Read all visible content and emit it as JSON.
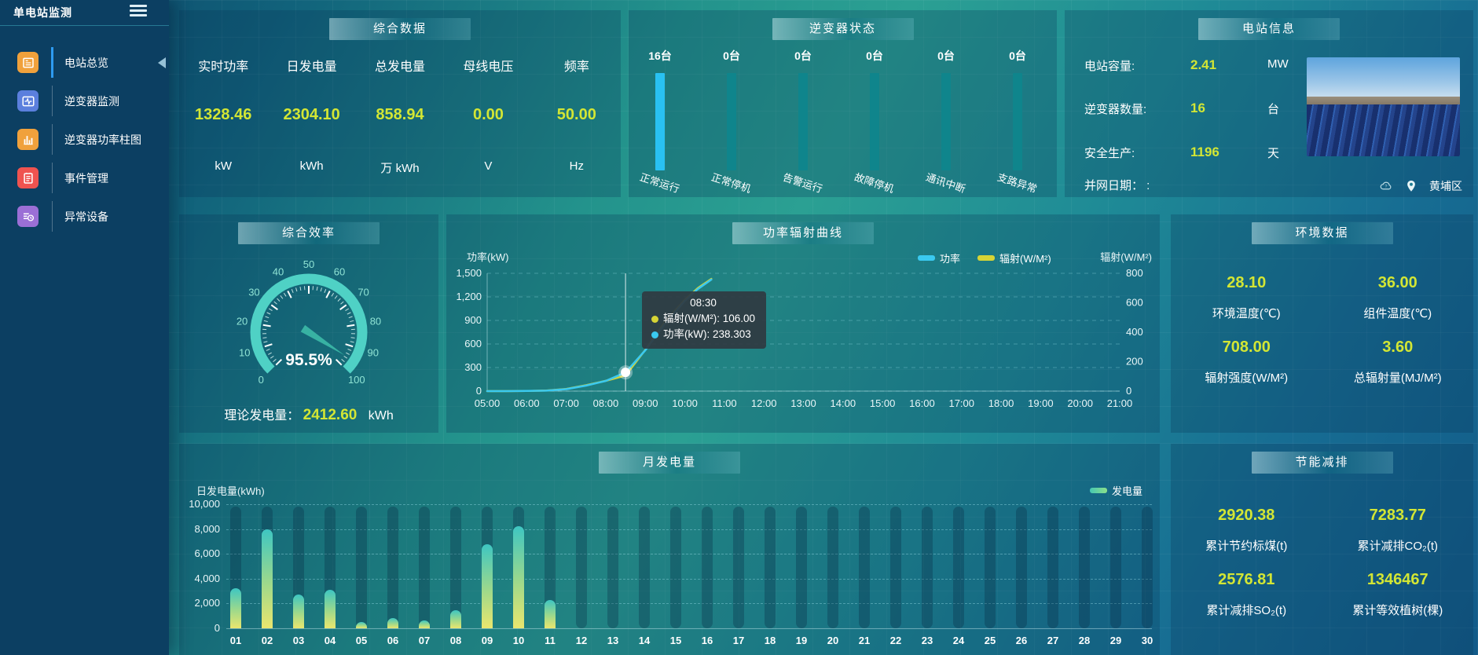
{
  "sidebar": {
    "title": "单电站监测",
    "items": [
      {
        "label": "电站总览",
        "icon": "doc-icon",
        "color": "#f0a13c",
        "active": true
      },
      {
        "label": "逆变器监测",
        "icon": "pulse-icon",
        "color": "#5b7fdd",
        "active": false
      },
      {
        "label": "逆变器功率柱图",
        "icon": "bars-icon",
        "color": "#f0a13c",
        "active": false
      },
      {
        "label": "事件管理",
        "icon": "notebook-icon",
        "color": "#ef5350",
        "active": false
      },
      {
        "label": "异常设备",
        "icon": "device-clock-icon",
        "color": "#9b6fd6",
        "active": false
      }
    ]
  },
  "overview": {
    "title": "综合数据",
    "metrics": [
      {
        "label": "实时功率",
        "value": "1328.46",
        "unit": "kW"
      },
      {
        "label": "日发电量",
        "value": "2304.10",
        "unit": "kWh"
      },
      {
        "label": "总发电量",
        "value": "858.94",
        "unit": "万 kWh"
      },
      {
        "label": "母线电压",
        "value": "0.00",
        "unit": "V"
      },
      {
        "label": "频率",
        "value": "50.00",
        "unit": "Hz"
      }
    ]
  },
  "inverter_status": {
    "title": "逆变器状态",
    "bars": [
      {
        "count": "16台",
        "label": "正常运行",
        "highlight": true
      },
      {
        "count": "0台",
        "label": "正常停机",
        "highlight": false
      },
      {
        "count": "0台",
        "label": "告警运行",
        "highlight": false
      },
      {
        "count": "0台",
        "label": "故障停机",
        "highlight": false
      },
      {
        "count": "0台",
        "label": "通讯中断",
        "highlight": false
      },
      {
        "count": "0台",
        "label": "支路异常",
        "highlight": false
      }
    ],
    "colors": {
      "highlight": "#29c1f2",
      "normal": "#0f858c"
    }
  },
  "station_info": {
    "title": "电站信息",
    "rows": [
      {
        "label": "电站容量:",
        "value": "2.41",
        "unit": "MW"
      },
      {
        "label": "逆变器数量:",
        "value": "16",
        "unit": "台"
      },
      {
        "label": "安全生产:",
        "value": "1196",
        "unit": "天"
      },
      {
        "label": "并网日期： :",
        "value": "",
        "unit": ""
      }
    ],
    "location": "黄埔区"
  },
  "efficiency": {
    "title": "综合效率",
    "gauge": {
      "value": 95.5,
      "display": "95.5%",
      "min": 0,
      "max": 100,
      "tick_labels": [
        "0",
        "10",
        "20",
        "30",
        "40",
        "50",
        "60",
        "70",
        "80",
        "90",
        "100"
      ],
      "arc_color": "#4fd1c5",
      "needle_color": "#38b2a3",
      "label_color": "#8fe3d4"
    },
    "footer": {
      "label": "理论发电量：",
      "value": "2412.60",
      "unit": "kWh"
    }
  },
  "power_curve": {
    "title": "功率辐射曲线",
    "y_left_title": "功率(kW)",
    "y_right_title": "辐射(W/M²)",
    "legend": [
      {
        "name": "功率",
        "color": "#3ac9f0"
      },
      {
        "name": "辐射(W/M²)",
        "color": "#d6d435"
      }
    ],
    "y_left_ticks": [
      "1,500",
      "1,200",
      "900",
      "600",
      "300",
      "0"
    ],
    "y_right_ticks": [
      "800",
      "600",
      "400",
      "200",
      "0"
    ],
    "x_labels": [
      "05:00",
      "06:00",
      "07:00",
      "08:00",
      "09:00",
      "10:00",
      "11:00",
      "12:00",
      "13:00",
      "14:00",
      "15:00",
      "16:00",
      "17:00",
      "18:00",
      "19:00",
      "20:00",
      "21:00"
    ],
    "chart_data": {
      "type": "line",
      "x_hours": [
        5,
        5.5,
        6,
        6.5,
        7,
        7.5,
        8,
        8.5,
        9,
        9.5,
        10,
        10.33,
        10.67
      ],
      "series": [
        {
          "name": "功率",
          "axis": "left",
          "color": "#3ac9f0",
          "values": [
            0,
            0,
            2,
            6,
            25,
            70,
            130,
            238.303,
            520,
            860,
            1150,
            1300,
            1420
          ]
        },
        {
          "name": "辐射(W/M²)",
          "axis": "right",
          "color": "#d6d435",
          "values": [
            0,
            0,
            1,
            4,
            15,
            40,
            70,
            106,
            280,
            470,
            620,
            700,
            762
          ]
        }
      ],
      "y_left_max": 1500,
      "y_right_max": 800,
      "x_min": 5,
      "x_max": 21,
      "grid": "dashed"
    },
    "tooltip": {
      "time": "08:30",
      "lines": [
        {
          "dot": "#d6d435",
          "text": "辐射(W/M²): 106.00"
        },
        {
          "dot": "#3ac9f0",
          "text": "功率(kW): 238.303"
        }
      ],
      "x_hour": 8.5,
      "marker_value": 238.303
    }
  },
  "environment": {
    "title": "环境数据",
    "cells": [
      {
        "value": "28.10",
        "label": "环境温度(℃)"
      },
      {
        "value": "36.00",
        "label": "组件温度(℃)"
      },
      {
        "value": "708.00",
        "label": "辐射强度(W/M²)"
      },
      {
        "value": "3.60",
        "label": "总辐射量(MJ/M²)"
      }
    ]
  },
  "monthly": {
    "title": "月发电量",
    "y_title": "日发电量(kWh)",
    "legend_name": "发电量",
    "y_ticks": [
      "10,000",
      "8,000",
      "6,000",
      "4,000",
      "2,000",
      "0"
    ],
    "chart_data": {
      "type": "bar",
      "categories": [
        "01",
        "02",
        "03",
        "04",
        "05",
        "06",
        "07",
        "08",
        "09",
        "10",
        "11",
        "12",
        "13",
        "14",
        "15",
        "16",
        "17",
        "18",
        "19",
        "20",
        "21",
        "22",
        "23",
        "24",
        "25",
        "26",
        "27",
        "28",
        "29",
        "30"
      ],
      "values": [
        3200,
        8000,
        2700,
        3100,
        500,
        800,
        650,
        1450,
        6800,
        8200,
        2250,
        0,
        0,
        0,
        0,
        0,
        0,
        0,
        0,
        0,
        0,
        0,
        0,
        0,
        0,
        0,
        0,
        0,
        0,
        0
      ],
      "y_max": 10000,
      "grid": "dashed"
    }
  },
  "saving": {
    "title": "节能减排",
    "cells": [
      {
        "value": "2920.38",
        "label": "累计节约标煤(t)"
      },
      {
        "value": "7283.77",
        "label": "累计减排CO₂(t)"
      },
      {
        "value": "2576.81",
        "label": "累计减排SO₂(t)"
      },
      {
        "value": "1346467",
        "label": "累计等效植树(棵)"
      }
    ]
  },
  "colors": {
    "value_yellow": "#d3e634",
    "bar_gradient_top": "#3ec6c2",
    "bar_gradient_bottom": "#eae66e",
    "sidebar_bg": "#0c3f62",
    "active_indicator": "#2e9bf0"
  }
}
